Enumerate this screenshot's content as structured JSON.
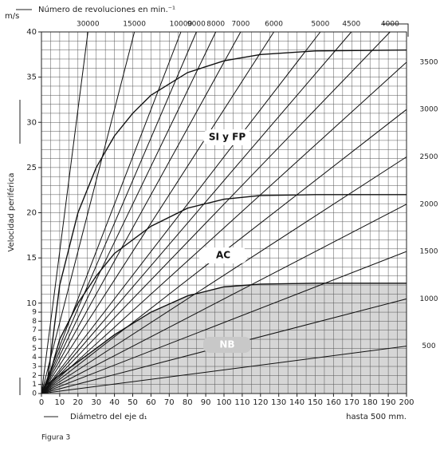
{
  "chart_data": {
    "type": "line",
    "title": "Número de revoluciones en min.⁻¹",
    "y_unit": "m/s",
    "y_label": "Velocidad periférica",
    "x_label": "Diámetro del eje d₁",
    "x_note": "hasta 500 mm.",
    "caption": "Figura 3",
    "xlim": [
      0,
      200
    ],
    "ylim": [
      0,
      40
    ],
    "xticks": [
      0,
      10,
      20,
      30,
      40,
      50,
      60,
      70,
      80,
      90,
      100,
      110,
      120,
      130,
      140,
      150,
      160,
      170,
      180,
      190,
      200
    ],
    "yticks": [
      0,
      1,
      2,
      3,
      4,
      5,
      6,
      7,
      8,
      9,
      10,
      15,
      20,
      25,
      30,
      35,
      40
    ],
    "grid": true,
    "x_grid": [
      0,
      5,
      10,
      15,
      20,
      25,
      30,
      35,
      40,
      45,
      50,
      55,
      60,
      65,
      70,
      75,
      80,
      85,
      90,
      95,
      100,
      105,
      110,
      115,
      120,
      125,
      130,
      135,
      140,
      145,
      150,
      155,
      160,
      165,
      170,
      175,
      180,
      185,
      190,
      195,
      200
    ],
    "y_grid": [
      0,
      1,
      2,
      3,
      4,
      5,
      6,
      7,
      8,
      9,
      10,
      11,
      12,
      13,
      14,
      15,
      16,
      17,
      18,
      19,
      20,
      21,
      22,
      23,
      24,
      25,
      26,
      27,
      28,
      29,
      30,
      31,
      32,
      33,
      34,
      35,
      36,
      37,
      38,
      39,
      40
    ],
    "series": [
      {
        "name": "30000",
        "color": "#111",
        "x": [
          0,
          25.46
        ],
        "values": [
          0,
          40
        ]
      },
      {
        "name": "15000",
        "color": "#111",
        "x": [
          0,
          50.93
        ],
        "values": [
          0,
          40
        ]
      },
      {
        "name": "10000",
        "color": "#111",
        "x": [
          0,
          76.39
        ],
        "values": [
          0,
          40
        ]
      },
      {
        "name": "9000",
        "color": "#111",
        "x": [
          0,
          84.88
        ],
        "values": [
          0,
          40
        ]
      },
      {
        "name": "8000",
        "color": "#111",
        "x": [
          0,
          95.49
        ],
        "values": [
          0,
          40
        ]
      },
      {
        "name": "7000",
        "color": "#111",
        "x": [
          0,
          109.13
        ],
        "values": [
          0,
          40
        ]
      },
      {
        "name": "6000",
        "color": "#111",
        "x": [
          0,
          127.32
        ],
        "values": [
          0,
          40
        ]
      },
      {
        "name": "5000",
        "color": "#111",
        "x": [
          0,
          152.79
        ],
        "values": [
          0,
          40
        ]
      },
      {
        "name": "4500",
        "color": "#111",
        "x": [
          0,
          169.77
        ],
        "values": [
          0,
          40
        ]
      },
      {
        "name": "4000",
        "color": "#111",
        "x": [
          0,
          190.99
        ],
        "values": [
          0,
          40
        ]
      },
      {
        "name": "3500",
        "color": "#111",
        "x": [
          0,
          200
        ],
        "values": [
          0,
          36.65
        ]
      },
      {
        "name": "3000",
        "color": "#111",
        "x": [
          0,
          200
        ],
        "values": [
          0,
          31.42
        ]
      },
      {
        "name": "2500",
        "color": "#111",
        "x": [
          0,
          200
        ],
        "values": [
          0,
          26.18
        ]
      },
      {
        "name": "2000",
        "color": "#111",
        "x": [
          0,
          200
        ],
        "values": [
          0,
          20.94
        ]
      },
      {
        "name": "1500",
        "color": "#111",
        "x": [
          0,
          200
        ],
        "values": [
          0,
          15.71
        ]
      },
      {
        "name": "1000",
        "color": "#111",
        "x": [
          0,
          200
        ],
        "values": [
          0,
          10.47
        ]
      },
      {
        "name": "500",
        "color": "#111",
        "x": [
          0,
          200
        ],
        "values": [
          0,
          5.24
        ]
      }
    ],
    "curves": [
      {
        "name": "SI y FP",
        "color": "#111",
        "x": [
          3,
          10,
          20,
          30,
          40,
          50,
          60,
          80,
          100,
          120,
          150,
          200
        ],
        "values": [
          1,
          12,
          20,
          25,
          28.5,
          31,
          33,
          35.5,
          36.8,
          37.5,
          37.9,
          38
        ]
      },
      {
        "name": "AC",
        "color": "#111",
        "x": [
          3,
          10,
          20,
          30,
          40,
          60,
          80,
          100,
          120,
          150,
          200
        ],
        "values": [
          1,
          6,
          10,
          13,
          15.5,
          18.5,
          20.5,
          21.5,
          21.9,
          22,
          22
        ]
      },
      {
        "name": "NB",
        "color": "#111",
        "fill": "#d6d6d6",
        "x": [
          3,
          20,
          40,
          60,
          80,
          100,
          120,
          150,
          200
        ],
        "values": [
          1,
          3.5,
          6.5,
          9,
          10.8,
          11.8,
          12.1,
          12.2,
          12.2
        ]
      }
    ]
  }
}
